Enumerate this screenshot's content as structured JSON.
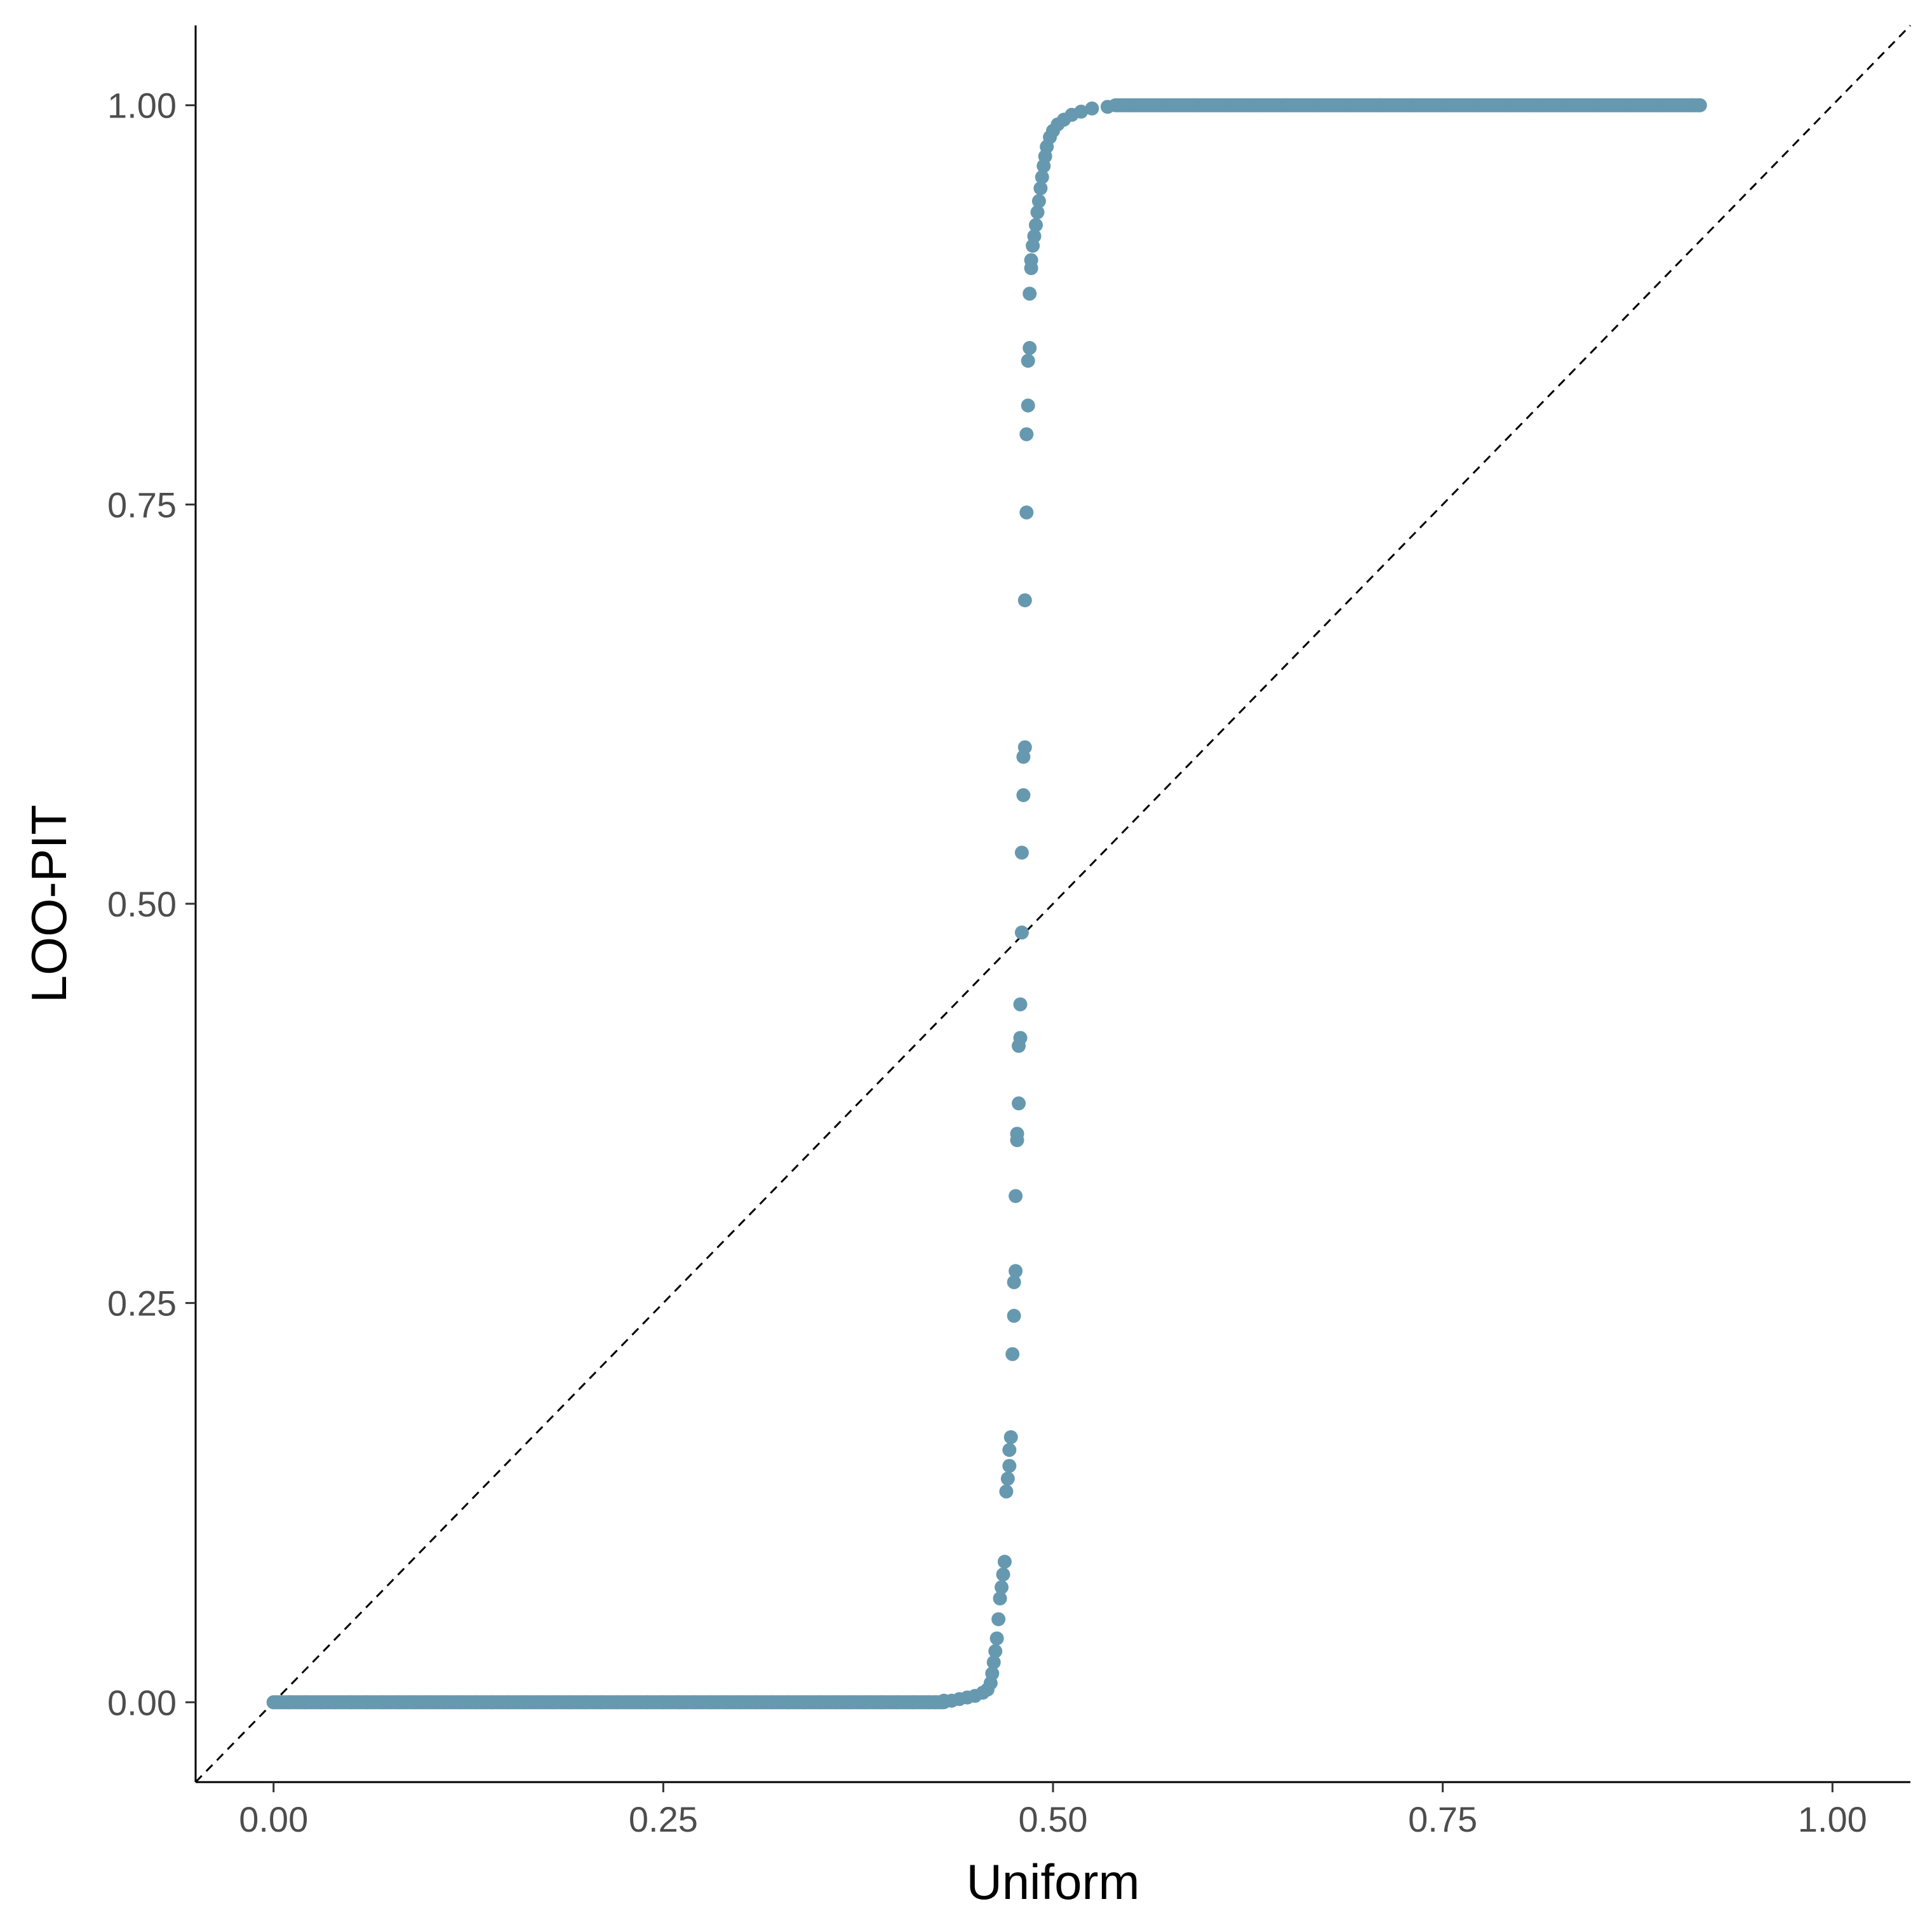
{
  "chart_data": {
    "type": "scatter",
    "title": "",
    "xlabel": "Uniform",
    "ylabel": "LOO-PIT",
    "xlim": [
      -0.05,
      1.05
    ],
    "ylim": [
      -0.05,
      1.05
    ],
    "x_ticks": [
      {
        "value": 0.0,
        "label": "0.00"
      },
      {
        "value": 0.25,
        "label": "0.25"
      },
      {
        "value": 0.5,
        "label": "0.50"
      },
      {
        "value": 0.75,
        "label": "0.75"
      },
      {
        "value": 1.0,
        "label": "1.00"
      }
    ],
    "y_ticks": [
      {
        "value": 0.0,
        "label": "0.00"
      },
      {
        "value": 0.25,
        "label": "0.25"
      },
      {
        "value": 0.5,
        "label": "0.50"
      },
      {
        "value": 0.75,
        "label": "0.75"
      },
      {
        "value": 1.0,
        "label": "1.00"
      }
    ],
    "grid": false,
    "legend": "none",
    "point_color": "#6699b0",
    "reference_line": {
      "type": "identity",
      "style": "dashed",
      "color": "#000000"
    },
    "series": [
      {
        "points": [
          [
            0.0,
            0.0
          ],
          [
            0.01,
            0.0
          ],
          [
            0.02,
            0.0
          ],
          [
            0.03,
            0.0
          ],
          [
            0.04,
            0.0
          ],
          [
            0.05,
            0.0
          ],
          [
            0.06,
            0.0
          ],
          [
            0.07,
            0.0
          ],
          [
            0.08,
            0.0
          ],
          [
            0.09,
            0.0
          ],
          [
            0.1,
            0.0
          ],
          [
            0.11,
            0.0
          ],
          [
            0.12,
            0.0
          ],
          [
            0.13,
            0.0
          ],
          [
            0.14,
            0.0
          ],
          [
            0.15,
            0.0
          ],
          [
            0.16,
            0.0
          ],
          [
            0.17,
            0.0
          ],
          [
            0.18,
            0.0
          ],
          [
            0.19,
            0.0
          ],
          [
            0.2,
            0.0
          ],
          [
            0.21,
            0.0
          ],
          [
            0.22,
            0.0
          ],
          [
            0.23,
            0.0
          ],
          [
            0.24,
            0.0
          ],
          [
            0.25,
            0.0
          ],
          [
            0.26,
            0.0
          ],
          [
            0.27,
            0.0
          ],
          [
            0.28,
            0.0
          ],
          [
            0.29,
            0.0
          ],
          [
            0.3,
            0.0
          ],
          [
            0.31,
            0.0
          ],
          [
            0.32,
            0.0
          ],
          [
            0.33,
            0.0
          ],
          [
            0.34,
            0.0
          ],
          [
            0.35,
            0.0
          ],
          [
            0.36,
            0.0
          ],
          [
            0.37,
            0.0
          ],
          [
            0.38,
            0.0
          ],
          [
            0.39,
            0.0
          ],
          [
            0.4,
            0.0
          ],
          [
            0.41,
            0.0
          ],
          [
            0.42,
            0.0
          ],
          [
            0.425,
            0.0
          ],
          [
            0.43,
            0.001
          ],
          [
            0.435,
            0.001
          ],
          [
            0.44,
            0.002
          ],
          [
            0.445,
            0.003
          ],
          [
            0.45,
            0.004
          ],
          [
            0.455,
            0.006
          ],
          [
            0.458,
            0.008
          ],
          [
            0.46,
            0.012
          ],
          [
            0.461,
            0.018
          ],
          [
            0.462,
            0.025
          ],
          [
            0.463,
            0.032
          ],
          [
            0.464,
            0.04
          ],
          [
            0.465,
            0.052
          ],
          [
            0.466,
            0.065
          ],
          [
            0.467,
            0.072
          ],
          [
            0.468,
            0.08
          ],
          [
            0.469,
            0.088
          ],
          [
            0.47,
            0.132
          ],
          [
            0.471,
            0.14
          ],
          [
            0.472,
            0.148
          ],
          [
            0.472,
            0.158
          ],
          [
            0.473,
            0.166
          ],
          [
            0.474,
            0.218
          ],
          [
            0.475,
            0.242
          ],
          [
            0.475,
            0.263
          ],
          [
            0.476,
            0.27
          ],
          [
            0.476,
            0.317
          ],
          [
            0.477,
            0.352
          ],
          [
            0.477,
            0.356
          ],
          [
            0.478,
            0.375
          ],
          [
            0.478,
            0.411
          ],
          [
            0.479,
            0.416
          ],
          [
            0.479,
            0.437
          ],
          [
            0.48,
            0.482
          ],
          [
            0.48,
            0.532
          ],
          [
            0.481,
            0.568
          ],
          [
            0.481,
            0.592
          ],
          [
            0.482,
            0.598
          ],
          [
            0.482,
            0.69
          ],
          [
            0.483,
            0.745
          ],
          [
            0.483,
            0.794
          ],
          [
            0.484,
            0.812
          ],
          [
            0.484,
            0.84
          ],
          [
            0.485,
            0.848
          ],
          [
            0.485,
            0.882
          ],
          [
            0.486,
            0.898
          ],
          [
            0.486,
            0.903
          ],
          [
            0.487,
            0.912
          ],
          [
            0.488,
            0.918
          ],
          [
            0.489,
            0.925
          ],
          [
            0.49,
            0.933
          ],
          [
            0.491,
            0.94
          ],
          [
            0.492,
            0.948
          ],
          [
            0.493,
            0.955
          ],
          [
            0.494,
            0.962
          ],
          [
            0.495,
            0.968
          ],
          [
            0.496,
            0.974
          ],
          [
            0.498,
            0.98
          ],
          [
            0.5,
            0.984
          ],
          [
            0.503,
            0.988
          ],
          [
            0.507,
            0.991
          ],
          [
            0.512,
            0.994
          ],
          [
            0.518,
            0.996
          ],
          [
            0.525,
            0.998
          ],
          [
            0.535,
            0.999
          ],
          [
            0.55,
            1.0
          ],
          [
            0.57,
            1.0
          ],
          [
            0.59,
            1.0
          ],
          [
            0.61,
            1.0
          ],
          [
            0.63,
            1.0
          ],
          [
            0.65,
            1.0
          ],
          [
            0.67,
            1.0
          ],
          [
            0.69,
            1.0
          ],
          [
            0.71,
            1.0
          ],
          [
            0.73,
            1.0
          ],
          [
            0.75,
            1.0
          ],
          [
            0.77,
            1.0
          ],
          [
            0.79,
            1.0
          ],
          [
            0.81,
            1.0
          ],
          [
            0.83,
            1.0
          ],
          [
            0.85,
            1.0
          ],
          [
            0.87,
            1.0
          ],
          [
            0.89,
            1.0
          ],
          [
            0.91,
            1.0
          ],
          [
            0.915,
            1.0
          ]
        ]
      }
    ]
  }
}
